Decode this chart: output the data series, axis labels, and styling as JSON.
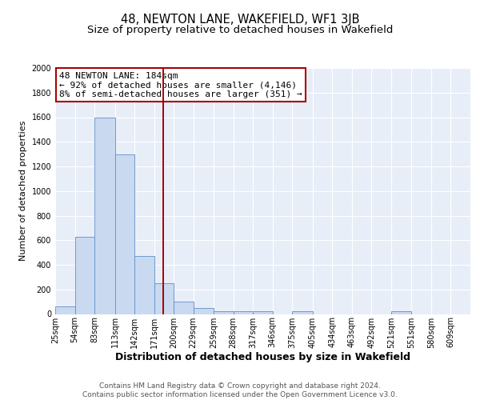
{
  "title1": "48, NEWTON LANE, WAKEFIELD, WF1 3JB",
  "title2": "Size of property relative to detached houses in Wakefield",
  "xlabel": "Distribution of detached houses by size in Wakefield",
  "ylabel": "Number of detached properties",
  "bin_labels": [
    "25sqm",
    "54sqm",
    "83sqm",
    "113sqm",
    "142sqm",
    "171sqm",
    "200sqm",
    "229sqm",
    "259sqm",
    "288sqm",
    "317sqm",
    "346sqm",
    "375sqm",
    "405sqm",
    "434sqm",
    "463sqm",
    "492sqm",
    "521sqm",
    "551sqm",
    "580sqm",
    "609sqm"
  ],
  "bin_edges": [
    25,
    54,
    83,
    113,
    142,
    171,
    200,
    229,
    259,
    288,
    317,
    346,
    375,
    405,
    434,
    463,
    492,
    521,
    551,
    580,
    609
  ],
  "bar_heights": [
    65,
    630,
    1600,
    1300,
    470,
    250,
    100,
    50,
    25,
    20,
    20,
    0,
    20,
    0,
    0,
    0,
    0,
    20,
    0,
    0,
    0
  ],
  "bar_color": "#c9d9f0",
  "bar_edge_color": "#6090c8",
  "vline_x": 184,
  "vline_color": "#aa0000",
  "annotation_box_text": "48 NEWTON LANE: 184sqm\n← 92% of detached houses are smaller (4,146)\n8% of semi-detached houses are larger (351) →",
  "annotation_box_color": "white",
  "annotation_box_edge_color": "#aa0000",
  "ylim": [
    0,
    2000
  ],
  "figure_bg_color": "#ffffff",
  "plot_bg_color": "#e8eef8",
  "grid_color": "white",
  "footer_text": "Contains HM Land Registry data © Crown copyright and database right 2024.\nContains public sector information licensed under the Open Government Licence v3.0.",
  "title1_fontsize": 10.5,
  "title2_fontsize": 9.5,
  "xlabel_fontsize": 9,
  "ylabel_fontsize": 8,
  "tick_fontsize": 7,
  "annotation_fontsize": 8,
  "footer_fontsize": 6.5
}
